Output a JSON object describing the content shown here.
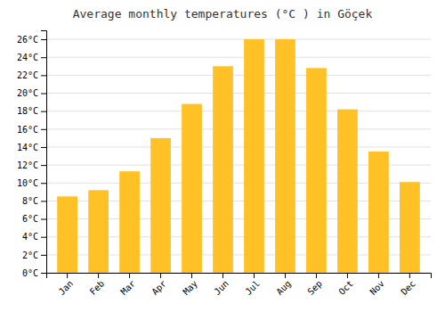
{
  "chart_data": {
    "type": "bar",
    "title": "Average monthly temperatures (°C ) in Göçek",
    "categories": [
      "Jan",
      "Feb",
      "Mar",
      "Apr",
      "May",
      "Jun",
      "Jul",
      "Aug",
      "Sep",
      "Oct",
      "Nov",
      "Dec"
    ],
    "values": [
      8.5,
      9.2,
      11.3,
      15.0,
      18.8,
      23.0,
      26.0,
      26.0,
      22.8,
      18.2,
      13.5,
      10.1
    ],
    "color": "#FFC125",
    "ylim": [
      0,
      27
    ],
    "yticks": [
      {
        "value": 0,
        "label": "0°C"
      },
      {
        "value": 2,
        "label": "2°C"
      },
      {
        "value": 4,
        "label": "4°C"
      },
      {
        "value": 6,
        "label": "6°C"
      },
      {
        "value": 8,
        "label": "8°C"
      },
      {
        "value": 10,
        "label": "10°C"
      },
      {
        "value": 12,
        "label": "12°C"
      },
      {
        "value": 14,
        "label": "14°C"
      },
      {
        "value": 16,
        "label": "16°C"
      },
      {
        "value": 18,
        "label": "18°C"
      },
      {
        "value": 20,
        "label": "20°C"
      },
      {
        "value": 22,
        "label": "22°C"
      },
      {
        "value": 24,
        "label": "24°C"
      },
      {
        "value": 26,
        "label": "26°C"
      }
    ],
    "grid": true
  }
}
